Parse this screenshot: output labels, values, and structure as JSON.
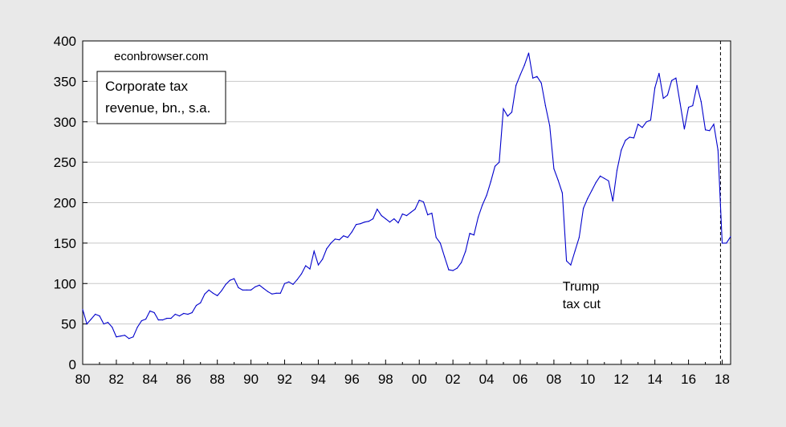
{
  "chart_data": {
    "type": "line",
    "watermark": "econbrowser.com",
    "legend_lines": [
      "Corporate tax",
      "revenue, bn., s.a."
    ],
    "annotation_lines": [
      "Trump",
      "tax cut"
    ],
    "annotation_x": 2008.9,
    "vline_x": 2017.9,
    "xlim": [
      1980,
      2018.5
    ],
    "ylim": [
      0,
      400
    ],
    "grid": true,
    "line_color": "#0000cc",
    "y_ticks": [
      0,
      50,
      100,
      150,
      200,
      250,
      300,
      350,
      400
    ],
    "y_tick_labels": [
      "0",
      "50",
      "100",
      "150",
      "200",
      "250",
      "300",
      "350",
      "400"
    ],
    "x_ticks": [
      1980,
      1982,
      1984,
      1986,
      1988,
      1990,
      1992,
      1994,
      1996,
      1998,
      2000,
      2002,
      2004,
      2006,
      2008,
      2010,
      2012,
      2014,
      2016,
      2018
    ],
    "x_tick_labels": [
      "80",
      "82",
      "84",
      "86",
      "88",
      "90",
      "92",
      "94",
      "96",
      "98",
      "00",
      "02",
      "04",
      "06",
      "08",
      "10",
      "12",
      "14",
      "16",
      "18"
    ],
    "series": [
      {
        "x": [
          1980.0,
          1980.25,
          1980.5,
          1980.75,
          1981.0,
          1981.25,
          1981.5,
          1981.75,
          1982.0,
          1982.25,
          1982.5,
          1982.75,
          1983.0,
          1983.25,
          1983.5,
          1983.75,
          1984.0,
          1984.25,
          1984.5,
          1984.75,
          1985.0,
          1985.25,
          1985.5,
          1985.75,
          1986.0,
          1986.25,
          1986.5,
          1986.75,
          1987.0,
          1987.25,
          1987.5,
          1987.75,
          1988.0,
          1988.25,
          1988.5,
          1988.75,
          1989.0,
          1989.25,
          1989.5,
          1989.75,
          1990.0,
          1990.25,
          1990.5,
          1990.75,
          1991.0,
          1991.25,
          1991.5,
          1991.75,
          1992.0,
          1992.25,
          1992.5,
          1992.75,
          1993.0,
          1993.25,
          1993.5,
          1993.75,
          1994.0,
          1994.25,
          1994.5,
          1994.75,
          1995.0,
          1995.25,
          1995.5,
          1995.75,
          1996.0,
          1996.25,
          1996.5,
          1996.75,
          1997.0,
          1997.25,
          1997.5,
          1997.75,
          1998.0,
          1998.25,
          1998.5,
          1998.75,
          1999.0,
          1999.25,
          1999.5,
          1999.75,
          2000.0,
          2000.25,
          2000.5,
          2000.75,
          2001.0,
          2001.25,
          2001.5,
          2001.75,
          2002.0,
          2002.25,
          2002.5,
          2002.75,
          2003.0,
          2003.25,
          2003.5,
          2003.75,
          2004.0,
          2004.25,
          2004.5,
          2004.75,
          2005.0,
          2005.25,
          2005.5,
          2005.75,
          2006.0,
          2006.25,
          2006.5,
          2006.75,
          2007.0,
          2007.25,
          2007.5,
          2007.75,
          2008.0,
          2008.25,
          2008.5,
          2008.75,
          2009.0,
          2009.25,
          2009.5,
          2009.75,
          2010.0,
          2010.25,
          2010.5,
          2010.75,
          2011.0,
          2011.25,
          2011.5,
          2011.75,
          2012.0,
          2012.25,
          2012.5,
          2012.75,
          2013.0,
          2013.25,
          2013.5,
          2013.75,
          2014.0,
          2014.25,
          2014.5,
          2014.75,
          2015.0,
          2015.25,
          2015.5,
          2015.75,
          2016.0,
          2016.25,
          2016.5,
          2016.75,
          2017.0,
          2017.25,
          2017.5,
          2017.75,
          2018.0,
          2018.25,
          2018.5
        ],
        "values": [
          68,
          50,
          56,
          62,
          60,
          50,
          52,
          46,
          34,
          35,
          36,
          32,
          34,
          46,
          54,
          56,
          66,
          64,
          55,
          55,
          57,
          57,
          62,
          60,
          63,
          62,
          64,
          73,
          76,
          87,
          92,
          88,
          85,
          91,
          99,
          104,
          106,
          95,
          92,
          92,
          92,
          96,
          98,
          94,
          90,
          87,
          88,
          88,
          100,
          102,
          99,
          105,
          112,
          122,
          118,
          140,
          123,
          130,
          143,
          150,
          155,
          154,
          159,
          157,
          164,
          173,
          174,
          176,
          177,
          180,
          192,
          184,
          180,
          176,
          180,
          175,
          186,
          184,
          188,
          192,
          203,
          201,
          185,
          187,
          157,
          150,
          133,
          117,
          116,
          119,
          126,
          140,
          162,
          160,
          182,
          197,
          209,
          226,
          245,
          250,
          316,
          307,
          312,
          345,
          358,
          370,
          385,
          354,
          356,
          348,
          320,
          295,
          242,
          228,
          212,
          128,
          123,
          140,
          157,
          193,
          205,
          215,
          225,
          233,
          230,
          227,
          202,
          240,
          265,
          277,
          281,
          280,
          297,
          293,
          300,
          302,
          342,
          360,
          329,
          333,
          351,
          354,
          323,
          291,
          318,
          320,
          345,
          325,
          290,
          289,
          297,
          265,
          150,
          150,
          158
        ]
      }
    ]
  }
}
